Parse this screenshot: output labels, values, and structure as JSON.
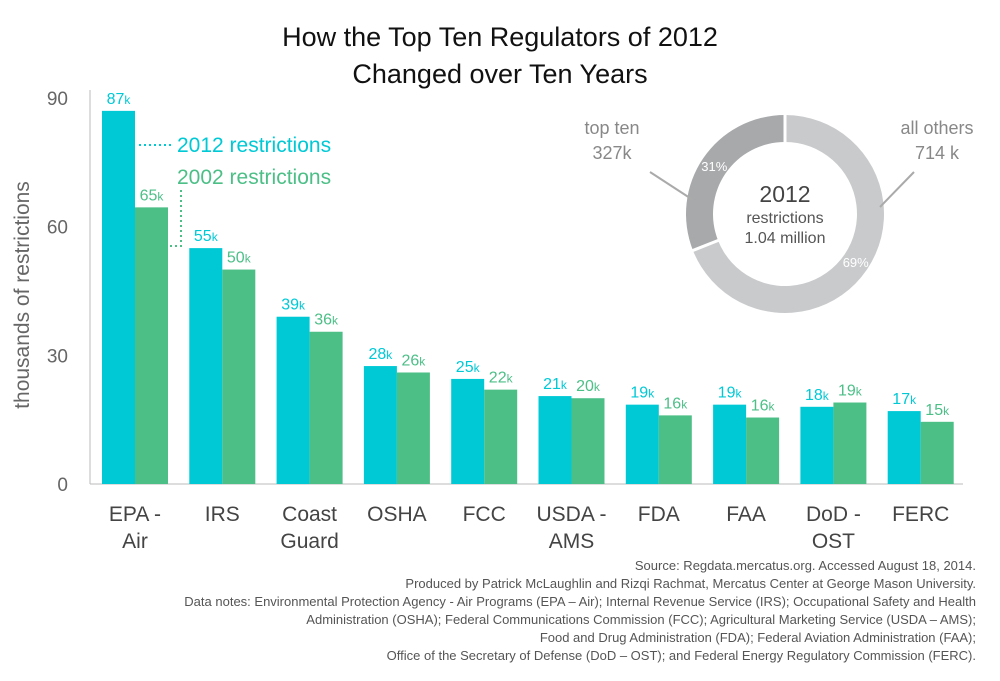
{
  "title_line1": "How the Top Ten Regulators of 2012",
  "title_line2": "Changed over Ten Years",
  "colors": {
    "y2012": "#00C9D6",
    "y2002": "#4CBF87",
    "donut_top": "#A7A9AB",
    "donut_other": "#C9CACC"
  },
  "chart_data": [
    {
      "type": "bar",
      "ylabel": "thousands of restrictions",
      "ylim": [
        0,
        90
      ],
      "yticks": [
        "0",
        "30",
        "60",
        "90"
      ],
      "yticks_values": [
        0,
        30,
        60,
        90
      ],
      "grid": false,
      "categories": [
        [
          "EPA -",
          "Air"
        ],
        [
          "IRS"
        ],
        [
          "Coast",
          "Guard"
        ],
        [
          "OSHA"
        ],
        [
          "FCC"
        ],
        [
          "USDA -",
          "AMS"
        ],
        [
          "FDA"
        ],
        [
          "FAA"
        ],
        [
          "DoD -",
          "OST"
        ],
        [
          "FERC"
        ]
      ],
      "series": [
        {
          "name": "2012 restrictions",
          "color": "#00C9D6",
          "values": [
            87,
            55,
            39,
            27.5,
            24.5,
            20.5,
            18.5,
            18.5,
            18,
            17
          ],
          "labels": [
            "87",
            "55",
            "39",
            "28",
            "25",
            "21",
            "19",
            "19",
            "18",
            "17"
          ]
        },
        {
          "name": "2002 restrictions",
          "color": "#4CBF87",
          "values": [
            64.5,
            50,
            35.5,
            26,
            22,
            20,
            16,
            15.5,
            19,
            14.5
          ],
          "labels": [
            "65",
            "50",
            "36",
            "26",
            "22",
            "20",
            "16",
            "16",
            "19",
            "15"
          ]
        }
      ],
      "label_suffix": "k",
      "legend_placement": "top-center"
    },
    {
      "type": "pie",
      "style": "donut",
      "center_title": "2012",
      "center_line1": "restrictions",
      "center_line2": "1.04 million",
      "slices": [
        {
          "name": "top ten",
          "value_label": "327k",
          "value": 327,
          "percent_label": "31%",
          "percent": 31
        },
        {
          "name": "all others",
          "value_label": "714 k",
          "value": 714,
          "percent_label": "69%",
          "percent": 69
        }
      ]
    }
  ],
  "notes": {
    "source": "Source: Regdata.mercatus.org. Accessed August 18, 2014.",
    "produced": "Produced by Patrick McLaughlin and Rizqi Rachmat, Mercatus Center at George Mason University.",
    "data_notes_1": "Data notes: Environmental Protection Agency -  Air Programs (EPA – Air); Internal Revenue Service (IRS); Occupational Safety and Health",
    "data_notes_2": "Administration (OSHA); Federal Communications Commission (FCC); Agricultural Marketing Service (USDA – AMS);",
    "data_notes_3": "Food and Drug Administration (FDA); Federal Aviation Administration (FAA);",
    "data_notes_4": "Office of the Secretary of Defense (DoD – OST); and Federal Energy Regulatory Commission (FERC)."
  }
}
